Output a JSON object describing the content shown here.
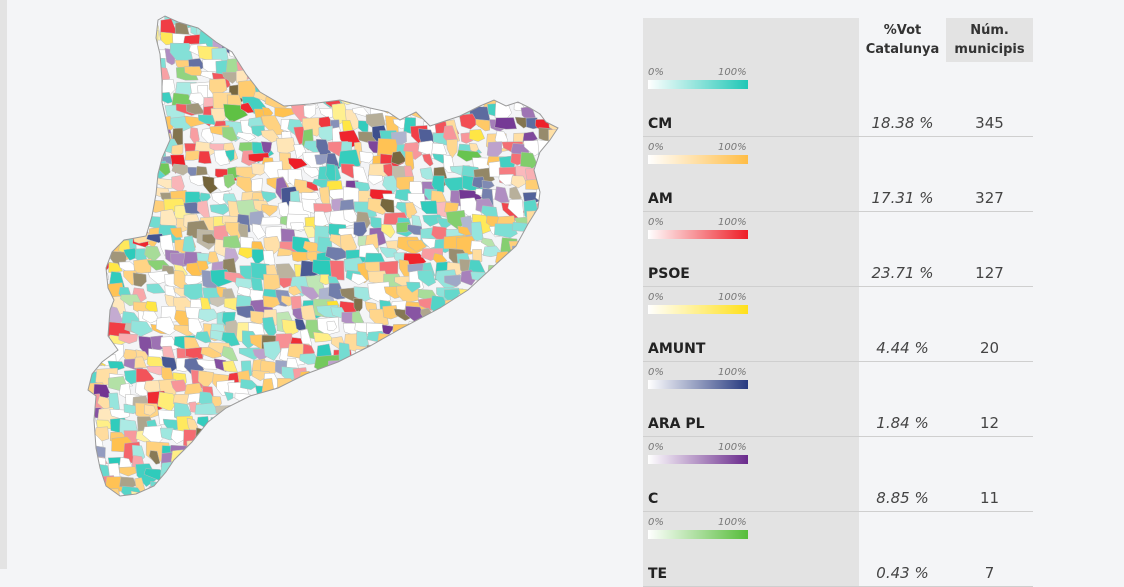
{
  "map": {
    "party_colors": {
      "CM": "#1fc7b6",
      "AM": "#ffbd45",
      "PSOE": "#ee1c25",
      "AMUNT": "#ffe01a",
      "ARA PL": "#26397f",
      "C": "#6a2a8c",
      "TE": "#56bd3a",
      "other": "#6b5a2e",
      "none": "#ffffff"
    }
  },
  "table": {
    "headers": {
      "party": "",
      "pct": "%Vot Catalunya",
      "municipalities": "Núm. municipis"
    },
    "scale_min_label": "0%",
    "scale_max_label": "100%",
    "rows": [
      {
        "party": "CM",
        "pct": "18.38 %",
        "municipalities": "345",
        "color": "#1fc7b6"
      },
      {
        "party": "AM",
        "pct": "17.31 %",
        "municipalities": "327",
        "color": "#ffbd45"
      },
      {
        "party": "PSOE",
        "pct": "23.71 %",
        "municipalities": "127",
        "color": "#ee1c25"
      },
      {
        "party": "AMUNT",
        "pct": "4.44 %",
        "municipalities": "20",
        "color": "#ffe01a"
      },
      {
        "party": "ARA PL",
        "pct": "1.84 %",
        "municipalities": "12",
        "color": "#26397f"
      },
      {
        "party": "C",
        "pct": "8.85 %",
        "municipalities": "11",
        "color": "#6a2a8c"
      },
      {
        "party": "TE",
        "pct": "0.43 %",
        "municipalities": "7",
        "color": "#56bd3a"
      }
    ]
  }
}
